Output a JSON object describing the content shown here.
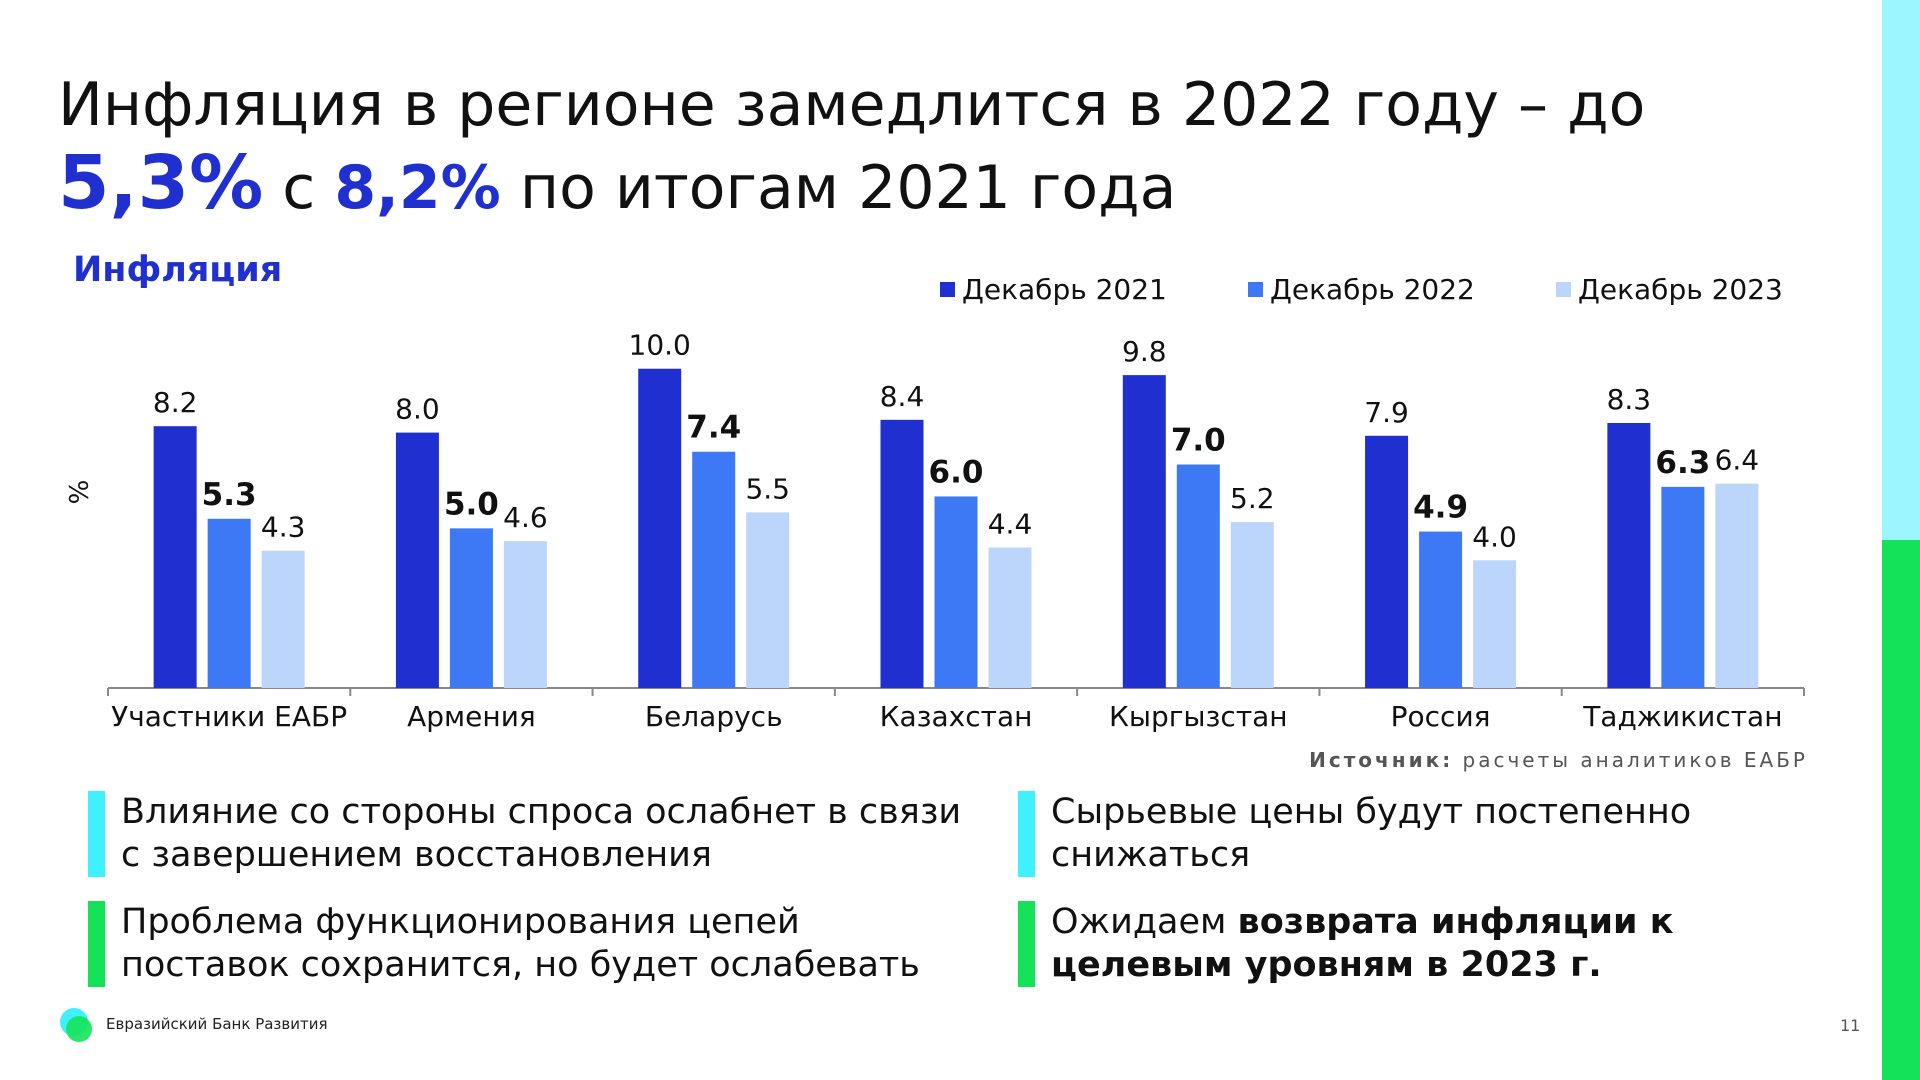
{
  "title": {
    "part1": "Инфляция в регионе замедлится в 2022 году – до ",
    "highlight1": "5,3%",
    "part2": " с ",
    "highlight2": "8,2%",
    "part3": " по итогам 2021 года"
  },
  "chart_heading": "Инфляция",
  "chart_data": {
    "type": "bar",
    "title": "Инфляция",
    "ylabel": "%",
    "xlabel": "",
    "ylim": [
      0,
      10.9
    ],
    "grid": false,
    "legend_position": "top-right",
    "categories": [
      "Участники ЕАБР",
      "Армения",
      "Беларусь",
      "Казахстан",
      "Кыргызстан",
      "Россия",
      "Таджикистан"
    ],
    "series": [
      {
        "name": "Декабрь 2021",
        "color": "#1f2fd0",
        "label_bold": false,
        "values": [
          8.2,
          8.0,
          10.0,
          8.4,
          9.8,
          7.9,
          8.3
        ],
        "labels": [
          "8.2",
          "8.0",
          "10.0",
          "8.4",
          "9.8",
          "7.9",
          "8.3"
        ]
      },
      {
        "name": "Декабрь 2022",
        "color": "#3d78f5",
        "label_bold": true,
        "values": [
          5.3,
          5.0,
          7.4,
          6.0,
          7.0,
          4.9,
          6.3
        ],
        "labels": [
          "5.3",
          "5.0",
          "7.4",
          "6.0",
          "7.0",
          "4.9",
          "6.3"
        ]
      },
      {
        "name": "Декабрь 2023",
        "color": "#bcd6fb",
        "label_bold": false,
        "values": [
          4.3,
          4.6,
          5.5,
          4.4,
          5.2,
          4.0,
          6.4
        ],
        "labels": [
          "4.3",
          "4.6",
          "5.5",
          "4.4",
          "5.2",
          "4.0",
          "6.4"
        ]
      }
    ]
  },
  "source": {
    "label": "Источник:",
    "text": " расчеты аналитиков ЕАБР"
  },
  "bullets": [
    {
      "text": "Влияние со стороны спроса ослабнет в связи с завершением восстановления",
      "color": "cyan"
    },
    {
      "text": "Сырьевые цены будут постепенно снижаться",
      "color": "cyan"
    },
    {
      "text": "Проблема функционирования цепей поставок сохранится, но будет ослабевать",
      "color": "green"
    },
    {
      "text_plain": "Ожидаем ",
      "text_bold": "возврата инфляции к целевым уровням в 2023 г.",
      "color": "green"
    }
  ],
  "footer": {
    "logo_text": "Евразийский Банк Развития",
    "page_number": "11"
  },
  "colors": {
    "accent": "#1f2fd0",
    "cyan": "#3ff1ff",
    "green": "#14e35a"
  }
}
